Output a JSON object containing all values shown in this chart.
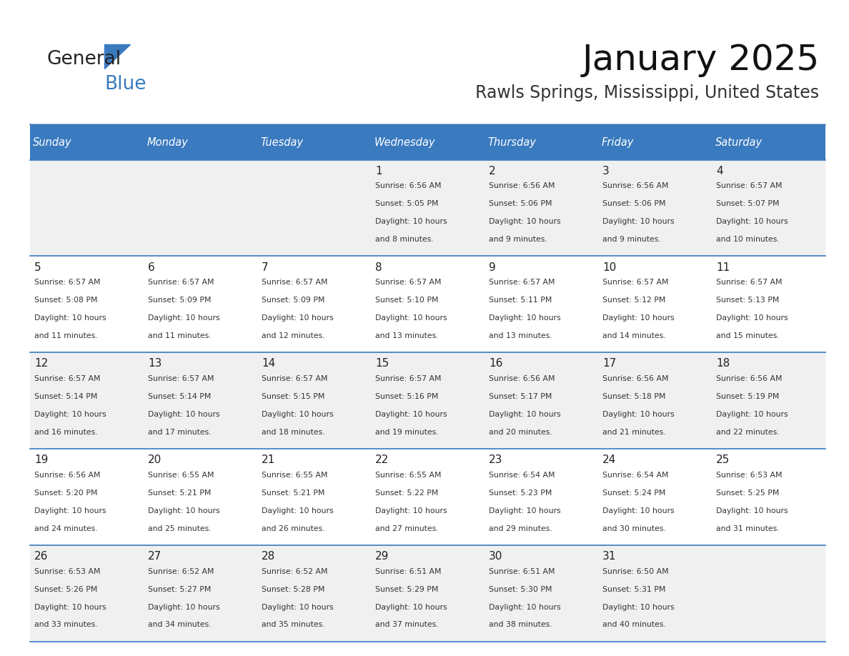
{
  "title": "January 2025",
  "subtitle": "Rawls Springs, Mississippi, United States",
  "header_bg": "#3a7abf",
  "header_text_color": "#ffffff",
  "cell_bg_even": "#f0f0f0",
  "cell_bg_odd": "#ffffff",
  "cell_border_color": "#3a7abf",
  "day_headers": [
    "Sunday",
    "Monday",
    "Tuesday",
    "Wednesday",
    "Thursday",
    "Friday",
    "Saturday"
  ],
  "weeks": [
    [
      {
        "day": "",
        "sunrise": "",
        "sunset": "",
        "daylight": ""
      },
      {
        "day": "",
        "sunrise": "",
        "sunset": "",
        "daylight": ""
      },
      {
        "day": "",
        "sunrise": "",
        "sunset": "",
        "daylight": ""
      },
      {
        "day": "1",
        "sunrise": "6:56 AM",
        "sunset": "5:05 PM",
        "daylight": "10 hours and 8 minutes."
      },
      {
        "day": "2",
        "sunrise": "6:56 AM",
        "sunset": "5:06 PM",
        "daylight": "10 hours and 9 minutes."
      },
      {
        "day": "3",
        "sunrise": "6:56 AM",
        "sunset": "5:06 PM",
        "daylight": "10 hours and 9 minutes."
      },
      {
        "day": "4",
        "sunrise": "6:57 AM",
        "sunset": "5:07 PM",
        "daylight": "10 hours and 10 minutes."
      }
    ],
    [
      {
        "day": "5",
        "sunrise": "6:57 AM",
        "sunset": "5:08 PM",
        "daylight": "10 hours and 11 minutes."
      },
      {
        "day": "6",
        "sunrise": "6:57 AM",
        "sunset": "5:09 PM",
        "daylight": "10 hours and 11 minutes."
      },
      {
        "day": "7",
        "sunrise": "6:57 AM",
        "sunset": "5:09 PM",
        "daylight": "10 hours and 12 minutes."
      },
      {
        "day": "8",
        "sunrise": "6:57 AM",
        "sunset": "5:10 PM",
        "daylight": "10 hours and 13 minutes."
      },
      {
        "day": "9",
        "sunrise": "6:57 AM",
        "sunset": "5:11 PM",
        "daylight": "10 hours and 13 minutes."
      },
      {
        "day": "10",
        "sunrise": "6:57 AM",
        "sunset": "5:12 PM",
        "daylight": "10 hours and 14 minutes."
      },
      {
        "day": "11",
        "sunrise": "6:57 AM",
        "sunset": "5:13 PM",
        "daylight": "10 hours and 15 minutes."
      }
    ],
    [
      {
        "day": "12",
        "sunrise": "6:57 AM",
        "sunset": "5:14 PM",
        "daylight": "10 hours and 16 minutes."
      },
      {
        "day": "13",
        "sunrise": "6:57 AM",
        "sunset": "5:14 PM",
        "daylight": "10 hours and 17 minutes."
      },
      {
        "day": "14",
        "sunrise": "6:57 AM",
        "sunset": "5:15 PM",
        "daylight": "10 hours and 18 minutes."
      },
      {
        "day": "15",
        "sunrise": "6:57 AM",
        "sunset": "5:16 PM",
        "daylight": "10 hours and 19 minutes."
      },
      {
        "day": "16",
        "sunrise": "6:56 AM",
        "sunset": "5:17 PM",
        "daylight": "10 hours and 20 minutes."
      },
      {
        "day": "17",
        "sunrise": "6:56 AM",
        "sunset": "5:18 PM",
        "daylight": "10 hours and 21 minutes."
      },
      {
        "day": "18",
        "sunrise": "6:56 AM",
        "sunset": "5:19 PM",
        "daylight": "10 hours and 22 minutes."
      }
    ],
    [
      {
        "day": "19",
        "sunrise": "6:56 AM",
        "sunset": "5:20 PM",
        "daylight": "10 hours and 24 minutes."
      },
      {
        "day": "20",
        "sunrise": "6:55 AM",
        "sunset": "5:21 PM",
        "daylight": "10 hours and 25 minutes."
      },
      {
        "day": "21",
        "sunrise": "6:55 AM",
        "sunset": "5:21 PM",
        "daylight": "10 hours and 26 minutes."
      },
      {
        "day": "22",
        "sunrise": "6:55 AM",
        "sunset": "5:22 PM",
        "daylight": "10 hours and 27 minutes."
      },
      {
        "day": "23",
        "sunrise": "6:54 AM",
        "sunset": "5:23 PM",
        "daylight": "10 hours and 29 minutes."
      },
      {
        "day": "24",
        "sunrise": "6:54 AM",
        "sunset": "5:24 PM",
        "daylight": "10 hours and 30 minutes."
      },
      {
        "day": "25",
        "sunrise": "6:53 AM",
        "sunset": "5:25 PM",
        "daylight": "10 hours and 31 minutes."
      }
    ],
    [
      {
        "day": "26",
        "sunrise": "6:53 AM",
        "sunset": "5:26 PM",
        "daylight": "10 hours and 33 minutes."
      },
      {
        "day": "27",
        "sunrise": "6:52 AM",
        "sunset": "5:27 PM",
        "daylight": "10 hours and 34 minutes."
      },
      {
        "day": "28",
        "sunrise": "6:52 AM",
        "sunset": "5:28 PM",
        "daylight": "10 hours and 35 minutes."
      },
      {
        "day": "29",
        "sunrise": "6:51 AM",
        "sunset": "5:29 PM",
        "daylight": "10 hours and 37 minutes."
      },
      {
        "day": "30",
        "sunrise": "6:51 AM",
        "sunset": "5:30 PM",
        "daylight": "10 hours and 38 minutes."
      },
      {
        "day": "31",
        "sunrise": "6:50 AM",
        "sunset": "5:31 PM",
        "daylight": "10 hours and 40 minutes."
      },
      {
        "day": "",
        "sunrise": "",
        "sunset": "",
        "daylight": ""
      }
    ]
  ],
  "logo_general_color": "#222222",
  "logo_blue_color": "#3a7abf",
  "logo_triangle_color": "#3a7abf",
  "title_fontsize": 36,
  "subtitle_fontsize": 17,
  "header_fontsize": 10.5,
  "day_num_fontsize": 11,
  "cell_text_fontsize": 7.8
}
